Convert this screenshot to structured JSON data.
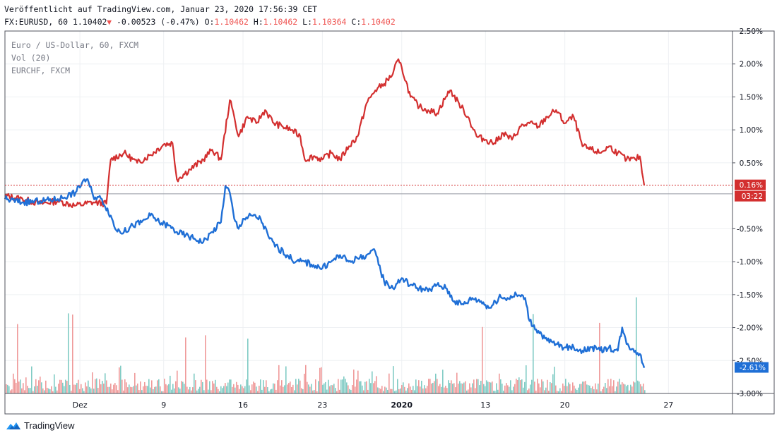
{
  "header": {
    "published": "Veröffentlicht auf TradingView.com, Januar 23, 2020 17:56:39 CET",
    "symbol": "FX:EURUSD, 60",
    "last": "1.10402",
    "change": "-0.00523 (-0.47%)",
    "o_label": "O:",
    "o_value": "1.10462",
    "h_label": "H:",
    "h_value": "1.10462",
    "l_label": "L:",
    "l_value": "1.10364",
    "c_label": "C:",
    "c_value": "1.10402"
  },
  "legend": {
    "main": "Euro / US-Dollar, 60, FXCM",
    "vol": "Vol (20)",
    "compare": "EURCHF, FXCM"
  },
  "footer": {
    "brand": "TradingView"
  },
  "colors": {
    "eurusd": "#1f6fd6",
    "eurchf": "#d32f2f",
    "vol_up": "#80cbc4",
    "vol_down": "#ef9a9a",
    "grid": "#eef0f3"
  },
  "chart_data": {
    "type": "line",
    "x_ticks": [
      "Dez",
      "9",
      "16",
      "23",
      "2020",
      "13",
      "20",
      "27"
    ],
    "y_ticks": [
      "2.50%",
      "2.00%",
      "1.50%",
      "1.00%",
      "0.50%",
      "-0.50%",
      "-1.00%",
      "-1.50%",
      "-2.00%",
      "-2.50%",
      "-3.00%"
    ],
    "ylim": [
      -3.0,
      2.5
    ],
    "y_unit": "%",
    "price_labels": {
      "eurchf_last": "0.16%",
      "countdown": "03:22",
      "eurusd_last": "-2.61%"
    },
    "series": [
      {
        "name": "EURCHF, FXCM",
        "points": [
          [
            0,
            0.0
          ],
          [
            4,
            -0.05
          ],
          [
            8,
            -0.12
          ],
          [
            12,
            -0.08
          ],
          [
            16,
            -0.15
          ],
          [
            20,
            -0.1
          ],
          [
            23,
            -0.12
          ],
          [
            24,
            0.55
          ],
          [
            27,
            0.65
          ],
          [
            30,
            0.5
          ],
          [
            33,
            0.62
          ],
          [
            36,
            0.78
          ],
          [
            38,
            0.8
          ],
          [
            39,
            0.25
          ],
          [
            42,
            0.4
          ],
          [
            45,
            0.55
          ],
          [
            47,
            0.7
          ],
          [
            49,
            0.55
          ],
          [
            51,
            1.45
          ],
          [
            52,
            1.2
          ],
          [
            53,
            0.9
          ],
          [
            55,
            1.2
          ],
          [
            57,
            1.1
          ],
          [
            59,
            1.3
          ],
          [
            61,
            1.1
          ],
          [
            63,
            1.05
          ],
          [
            65,
            1.0
          ],
          [
            67,
            0.9
          ],
          [
            68,
            0.55
          ],
          [
            70,
            0.6
          ],
          [
            72,
            0.55
          ],
          [
            74,
            0.65
          ],
          [
            76,
            0.55
          ],
          [
            78,
            0.75
          ],
          [
            80,
            0.9
          ],
          [
            82,
            1.4
          ],
          [
            84,
            1.6
          ],
          [
            86,
            1.7
          ],
          [
            88,
            1.85
          ],
          [
            89,
            2.05
          ],
          [
            90,
            1.95
          ],
          [
            92,
            1.5
          ],
          [
            94,
            1.35
          ],
          [
            96,
            1.3
          ],
          [
            98,
            1.25
          ],
          [
            100,
            1.5
          ],
          [
            101,
            1.6
          ],
          [
            103,
            1.4
          ],
          [
            105,
            1.2
          ],
          [
            107,
            0.9
          ],
          [
            109,
            0.85
          ],
          [
            111,
            0.8
          ],
          [
            113,
            0.95
          ],
          [
            115,
            0.85
          ],
          [
            117,
            1.05
          ],
          [
            119,
            1.1
          ],
          [
            121,
            1.05
          ],
          [
            123,
            1.2
          ],
          [
            125,
            1.3
          ],
          [
            127,
            1.1
          ],
          [
            129,
            1.2
          ],
          [
            131,
            0.75
          ],
          [
            133,
            0.7
          ],
          [
            135,
            0.65
          ],
          [
            137,
            0.75
          ],
          [
            139,
            0.65
          ],
          [
            141,
            0.55
          ],
          [
            143,
            0.55
          ],
          [
            144,
            0.6
          ],
          [
            145,
            0.16
          ]
        ]
      },
      {
        "name": "Euro / US-Dollar, 60, FXCM",
        "points": [
          [
            0,
            -0.05
          ],
          [
            4,
            -0.1
          ],
          [
            8,
            -0.08
          ],
          [
            12,
            -0.05
          ],
          [
            16,
            0.05
          ],
          [
            18,
            0.25
          ],
          [
            19,
            0.2
          ],
          [
            20,
            0.0
          ],
          [
            22,
            -0.05
          ],
          [
            24,
            -0.3
          ],
          [
            25,
            -0.5
          ],
          [
            27,
            -0.55
          ],
          [
            29,
            -0.45
          ],
          [
            31,
            -0.4
          ],
          [
            33,
            -0.3
          ],
          [
            35,
            -0.4
          ],
          [
            37,
            -0.45
          ],
          [
            39,
            -0.55
          ],
          [
            41,
            -0.6
          ],
          [
            43,
            -0.65
          ],
          [
            45,
            -0.7
          ],
          [
            47,
            -0.55
          ],
          [
            49,
            -0.4
          ],
          [
            50,
            0.15
          ],
          [
            51,
            0.05
          ],
          [
            52,
            -0.35
          ],
          [
            53,
            -0.5
          ],
          [
            54,
            -0.35
          ],
          [
            56,
            -0.3
          ],
          [
            58,
            -0.35
          ],
          [
            60,
            -0.65
          ],
          [
            62,
            -0.8
          ],
          [
            64,
            -0.9
          ],
          [
            66,
            -1.0
          ],
          [
            68,
            -1.0
          ],
          [
            70,
            -1.05
          ],
          [
            72,
            -1.1
          ],
          [
            74,
            -1.0
          ],
          [
            76,
            -0.9
          ],
          [
            78,
            -1.0
          ],
          [
            80,
            -0.95
          ],
          [
            82,
            -0.9
          ],
          [
            84,
            -0.85
          ],
          [
            86,
            -1.3
          ],
          [
            88,
            -1.4
          ],
          [
            90,
            -1.25
          ],
          [
            92,
            -1.35
          ],
          [
            94,
            -1.4
          ],
          [
            96,
            -1.45
          ],
          [
            98,
            -1.35
          ],
          [
            100,
            -1.4
          ],
          [
            102,
            -1.6
          ],
          [
            104,
            -1.65
          ],
          [
            106,
            -1.55
          ],
          [
            108,
            -1.6
          ],
          [
            110,
            -1.7
          ],
          [
            112,
            -1.55
          ],
          [
            114,
            -1.55
          ],
          [
            116,
            -1.5
          ],
          [
            118,
            -1.55
          ],
          [
            119,
            -1.9
          ],
          [
            121,
            -2.05
          ],
          [
            123,
            -2.2
          ],
          [
            125,
            -2.25
          ],
          [
            127,
            -2.3
          ],
          [
            129,
            -2.3
          ],
          [
            131,
            -2.35
          ],
          [
            133,
            -2.3
          ],
          [
            135,
            -2.35
          ],
          [
            137,
            -2.3
          ],
          [
            139,
            -2.35
          ],
          [
            140,
            -2.0
          ],
          [
            141,
            -2.25
          ],
          [
            143,
            -2.35
          ],
          [
            144,
            -2.4
          ],
          [
            145,
            -2.61
          ]
        ]
      }
    ]
  }
}
